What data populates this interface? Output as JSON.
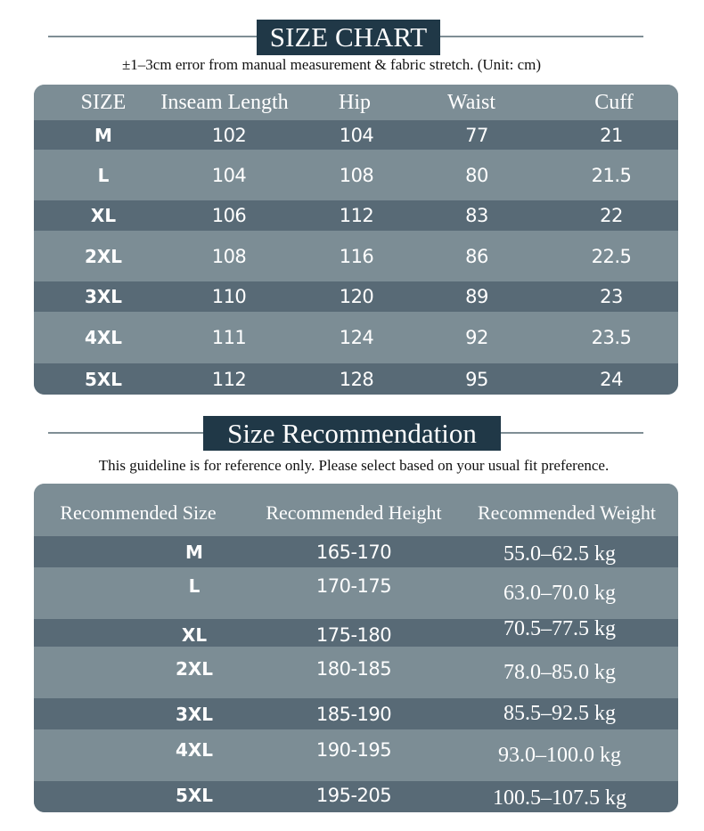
{
  "size_chart": {
    "title": "SIZE CHART",
    "note": "±1–3cm error from manual measurement & fabric stretch. (Unit: cm)",
    "columns": [
      "SIZE",
      "Inseam Length",
      "Hip",
      "Waist",
      "Cuff"
    ],
    "rows": [
      [
        "M",
        "102",
        "104",
        "77",
        "21"
      ],
      [
        "L",
        "104",
        "108",
        "80",
        "21.5"
      ],
      [
        "XL",
        "106",
        "112",
        "83",
        "22"
      ],
      [
        "2XL",
        "108",
        "116",
        "86",
        "22.5"
      ],
      [
        "3XL",
        "110",
        "120",
        "89",
        "23"
      ],
      [
        "4XL",
        "111",
        "124",
        "92",
        "23.5"
      ],
      [
        "5XL",
        "112",
        "128",
        "95",
        "24"
      ]
    ]
  },
  "recommendation": {
    "title": "Size Recommendation",
    "note": "This guideline is for reference only. Please select based on your usual fit preference.",
    "columns": [
      "Recommended Size",
      "Recommended Height",
      "Recommended Weight"
    ],
    "rows": [
      [
        "M",
        "165-170",
        "55.0–62.5 kg"
      ],
      [
        "L",
        "170-175",
        "63.0–70.0 kg"
      ],
      [
        "XL",
        "175-180",
        "70.5–77.5 kg"
      ],
      [
        "2XL",
        "180-185",
        "78.0–85.0 kg"
      ],
      [
        "3XL",
        "185-190",
        "85.5–92.5 kg"
      ],
      [
        "4XL",
        "190-195",
        "93.0–100.0 kg"
      ],
      [
        "5XL",
        "195-205",
        "100.5–107.5 kg"
      ]
    ]
  },
  "colors": {
    "title_bg": "#203847",
    "row_dark": "#586a76",
    "row_light": "#7c8d95",
    "rule": "#7f8e95"
  }
}
